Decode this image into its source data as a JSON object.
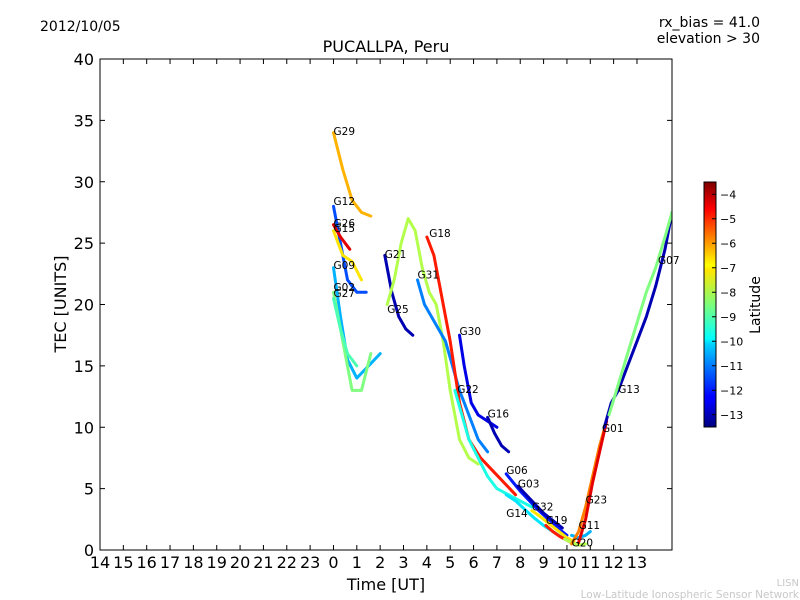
{
  "header": {
    "date": "2012/10/05",
    "rx_bias": "rx_bias = 41.0",
    "elevation": "elevation > 30"
  },
  "footer": {
    "org_short": "LISN",
    "org_full": "Low-Latitude Ionospheric Sensor Network"
  },
  "chart_data": {
    "type": "scatter",
    "title": "PUCALLPA, Peru",
    "xlabel": "Time [UT]",
    "ylabel": "TEC [UNITS]",
    "xlim": [
      14,
      38.5
    ],
    "ylim": [
      0,
      40
    ],
    "x_ticks": [
      14,
      15,
      16,
      17,
      18,
      19,
      20,
      21,
      22,
      23,
      24,
      25,
      26,
      27,
      28,
      29,
      30,
      31,
      32,
      33,
      34,
      35,
      36,
      37
    ],
    "x_tick_labels": [
      "14",
      "15",
      "16",
      "17",
      "18",
      "19",
      "20",
      "21",
      "22",
      "23",
      "0",
      "1",
      "2",
      "3",
      "4",
      "5",
      "6",
      "7",
      "8",
      "9",
      "10",
      "11",
      "12",
      "13"
    ],
    "y_ticks": [
      0,
      5,
      10,
      15,
      20,
      25,
      30,
      35,
      40
    ],
    "grid": false,
    "colorbar": {
      "label": "Latitude",
      "range": [
        -13.5,
        -3.5
      ],
      "ticks": [
        -13,
        -12,
        -11,
        -10,
        -9,
        -8,
        -7,
        -6,
        -5,
        -4
      ],
      "tick_labels": [
        "−13",
        "−12",
        "−11",
        "−10",
        "−9",
        "−8",
        "−7",
        "−6",
        "−5",
        "−4"
      ],
      "colormap": "jet"
    },
    "series": [
      {
        "name": "G29",
        "lat": -6.5,
        "x": [
          24.0,
          24.4,
          24.8,
          25.2,
          25.6
        ],
        "y": [
          34,
          31,
          28.5,
          27.5,
          27.2
        ]
      },
      {
        "name": "G12",
        "lat": -11.5,
        "x": [
          24.0,
          24.3,
          24.6,
          25.0,
          25.4
        ],
        "y": [
          28,
          25,
          22,
          21,
          21
        ]
      },
      {
        "name": "G26",
        "lat": -4.5,
        "x": [
          24.0,
          24.3,
          24.7
        ],
        "y": [
          26.5,
          25.5,
          24.5
        ]
      },
      {
        "name": "G15",
        "lat": -7,
        "x": [
          24.0,
          24.4,
          24.8,
          25.2
        ],
        "y": [
          26,
          24,
          23.5,
          22
        ]
      },
      {
        "name": "G09",
        "lat": -10.5,
        "x": [
          24.0,
          24.3,
          24.6,
          25.0,
          25.5,
          26.0
        ],
        "y": [
          23,
          19,
          15.5,
          14,
          15,
          16
        ]
      },
      {
        "name": "G02",
        "lat": -8.5,
        "x": [
          24.0,
          24.4,
          24.8,
          25.2,
          25.6
        ],
        "y": [
          21,
          17,
          13,
          13,
          16
        ]
      },
      {
        "name": "G27",
        "lat": -9,
        "x": [
          24.0,
          24.3,
          24.6,
          25.0
        ],
        "y": [
          20.5,
          18,
          16,
          15
        ]
      },
      {
        "name": "G21",
        "lat": -13,
        "x": [
          26.2,
          26.5,
          26.8,
          27.1,
          27.4
        ],
        "y": [
          24,
          21,
          19,
          18,
          17.5
        ]
      },
      {
        "name": "G25",
        "lat": -8,
        "x": [
          26.3,
          26.6,
          26.9,
          27.2,
          27.5,
          27.8,
          28.1,
          28.4,
          28.7,
          29.0,
          29.4,
          29.8,
          30.2
        ],
        "y": [
          20,
          22,
          25,
          27,
          26,
          23,
          21,
          20,
          17,
          13,
          9,
          7.5,
          7
        ]
      },
      {
        "name": "G31",
        "lat": -11,
        "x": [
          27.6,
          27.9,
          28.2,
          28.5,
          28.8,
          29.1,
          29.4,
          29.8,
          30.2,
          30.6
        ],
        "y": [
          22,
          20,
          19,
          18,
          17,
          15,
          13,
          11,
          9,
          8
        ]
      },
      {
        "name": "G18",
        "lat": -5,
        "x": [
          28.0,
          28.3,
          28.6,
          29.0,
          29.4,
          29.8,
          30.3,
          30.8,
          31.3,
          31.8
        ],
        "y": [
          25.5,
          24,
          21,
          17,
          12,
          9,
          7.5,
          6.5,
          5.5,
          4.5
        ]
      },
      {
        "name": "G30",
        "lat": -12.5,
        "x": [
          29.4,
          29.6,
          29.9,
          30.2,
          30.6,
          31.0
        ],
        "y": [
          17.5,
          15,
          12,
          11,
          10.5,
          10
        ]
      },
      {
        "name": "G22",
        "lat": -9.5,
        "x": [
          29.2,
          29.5,
          29.8,
          30.2,
          30.6,
          31.0,
          31.5,
          32.0,
          32.5
        ],
        "y": [
          13,
          11,
          9,
          7.5,
          6,
          5,
          4.5,
          4,
          3.5
        ]
      },
      {
        "name": "G16",
        "lat": -13,
        "x": [
          30.6,
          30.9,
          31.2,
          31.5
        ],
        "y": [
          10.8,
          9.5,
          8.5,
          8
        ]
      },
      {
        "name": "G06",
        "lat": -12,
        "x": [
          31.4,
          31.7,
          32.0,
          32.4,
          32.8,
          33.2,
          33.6,
          34.0
        ],
        "y": [
          6.2,
          5.5,
          4.8,
          4,
          3.2,
          2.5,
          1.8,
          1.2
        ]
      },
      {
        "name": "G03",
        "lat": -13,
        "x": [
          31.9,
          32.2,
          32.6,
          33.0,
          33.4,
          33.8
        ],
        "y": [
          5.2,
          4.6,
          3.8,
          3,
          2.4,
          1.8
        ]
      },
      {
        "name": "G32",
        "lat": -7,
        "x": [
          32.5,
          32.8,
          33.2,
          33.6,
          34.0,
          34.3
        ],
        "y": [
          3.2,
          2.8,
          2.2,
          1.6,
          1,
          0.7
        ]
      },
      {
        "name": "G14",
        "lat": -10,
        "x": [
          31.4,
          31.8,
          32.2,
          32.6,
          33.0,
          33.4,
          33.8,
          34.2
        ],
        "y": [
          4.5,
          4,
          3.3,
          2.6,
          2,
          1.5,
          1,
          0.6
        ]
      },
      {
        "name": "G19",
        "lat": -5,
        "x": [
          33.1,
          33.4,
          33.7,
          34.0,
          34.3
        ],
        "y": [
          2,
          1.5,
          1.1,
          0.8,
          0.5
        ]
      },
      {
        "name": "G11",
        "lat": -10.5,
        "x": [
          34.2,
          34.5,
          34.8,
          35.0
        ],
        "y": [
          1.2,
          1.0,
          1.2,
          1.5
        ]
      },
      {
        "name": "G20",
        "lat": -8,
        "x": [
          33.9,
          34.2,
          34.5,
          34.8
        ],
        "y": [
          0.9,
          0.6,
          0.4,
          0.5
        ]
      },
      {
        "name": "G23",
        "lat": -6,
        "x": [
          34.2,
          34.5,
          34.8,
          35.1,
          35.4,
          35.7
        ],
        "y": [
          0.5,
          1.5,
          3.5,
          6,
          8.5,
          10.5
        ]
      },
      {
        "name": "G01",
        "lat": -4.5,
        "x": [
          34.5,
          34.8,
          35.1,
          35.4,
          35.7
        ],
        "y": [
          0.6,
          2.5,
          5.5,
          8,
          10.5
        ]
      },
      {
        "name": "G13",
        "lat": -13,
        "x": [
          35.6,
          35.9,
          36.2,
          36.6,
          37.0,
          37.4,
          37.8,
          38.2,
          38.5
        ],
        "y": [
          10,
          12,
          13,
          15,
          17,
          19,
          21.5,
          24.5,
          27.5
        ]
      },
      {
        "name": "G07",
        "lat": -8.5,
        "x": [
          35.8,
          36.2,
          36.6,
          37.0,
          37.4,
          37.8,
          38.2,
          38.5
        ],
        "y": [
          11,
          13.5,
          16,
          18.5,
          21,
          23,
          25.5,
          27.5
        ]
      }
    ],
    "labels": [
      {
        "name": "G29",
        "x": 24.0,
        "y": 33.8
      },
      {
        "name": "G12",
        "x": 24.0,
        "y": 28.1
      },
      {
        "name": "G26",
        "x": 24.0,
        "y": 26.3
      },
      {
        "name": "G15",
        "x": 24.0,
        "y": 25.9
      },
      {
        "name": "G09",
        "x": 24.0,
        "y": 22.9
      },
      {
        "name": "G02",
        "x": 24.0,
        "y": 21.1
      },
      {
        "name": "G27",
        "x": 24.0,
        "y": 20.6
      },
      {
        "name": "G21",
        "x": 26.2,
        "y": 23.8
      },
      {
        "name": "G31",
        "x": 27.6,
        "y": 22.1
      },
      {
        "name": "G25",
        "x": 26.3,
        "y": 19.3
      },
      {
        "name": "G18",
        "x": 28.1,
        "y": 25.5
      },
      {
        "name": "G30",
        "x": 29.4,
        "y": 17.5
      },
      {
        "name": "G22",
        "x": 29.3,
        "y": 12.8
      },
      {
        "name": "G16",
        "x": 30.6,
        "y": 10.8
      },
      {
        "name": "G06",
        "x": 31.4,
        "y": 6.2
      },
      {
        "name": "G03",
        "x": 31.9,
        "y": 5.1
      },
      {
        "name": "G32",
        "x": 32.5,
        "y": 3.2
      },
      {
        "name": "G14",
        "x": 31.4,
        "y": 2.7
      },
      {
        "name": "G19",
        "x": 33.1,
        "y": 2.1
      },
      {
        "name": "G11",
        "x": 34.5,
        "y": 1.7
      },
      {
        "name": "G20",
        "x": 34.2,
        "y": 0.3
      },
      {
        "name": "G23",
        "x": 34.8,
        "y": 3.8
      },
      {
        "name": "G01",
        "x": 35.5,
        "y": 9.6
      },
      {
        "name": "G13",
        "x": 36.2,
        "y": 12.8
      },
      {
        "name": "G07",
        "x": 37.9,
        "y": 23.3
      }
    ]
  }
}
